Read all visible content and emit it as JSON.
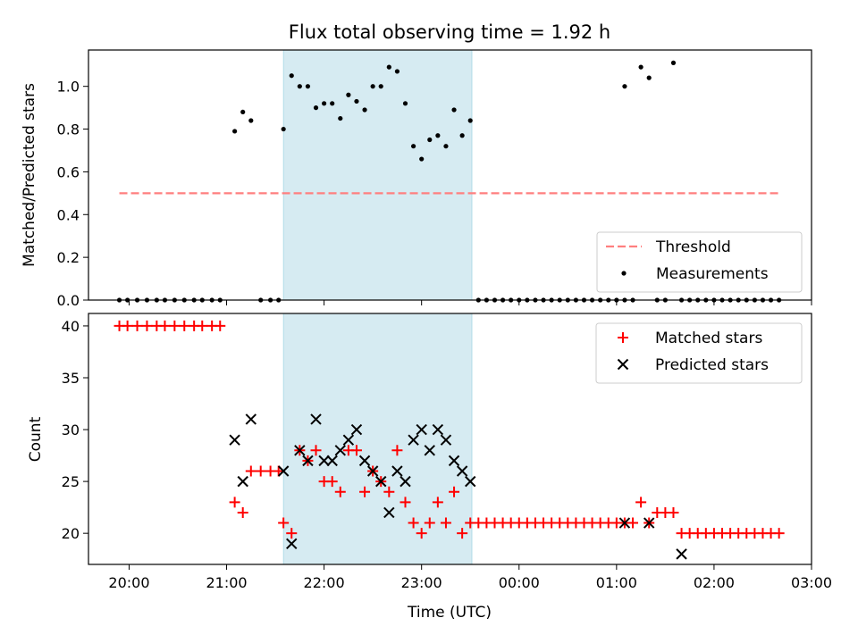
{
  "chart_data": [
    {
      "type": "scatter",
      "title": "Flux total observing time = 1.92 h",
      "xlabel": "",
      "ylabel": "Matched/Predicted stars",
      "xlim": [
        "19:35",
        "03:00"
      ],
      "ylim": [
        0,
        1.17
      ],
      "yticks": [
        "0.0",
        "0.2",
        "0.4",
        "0.6",
        "0.8",
        "1.0"
      ],
      "highlight_span": [
        "21:35",
        "23:31"
      ],
      "legend": {
        "placement": "lower-right"
      },
      "series": [
        {
          "name": "Threshold",
          "kind": "line",
          "style": "dashed",
          "color": "#ff7f7f",
          "x": [
            "19:54",
            "02:40"
          ],
          "y": [
            0.5,
            0.5
          ]
        },
        {
          "name": "Measurements",
          "kind": "points",
          "color": "#000000",
          "points": [
            [
              "19:54",
              0
            ],
            [
              "19:59",
              0
            ],
            [
              "20:05",
              0
            ],
            [
              "20:11",
              0
            ],
            [
              "20:17",
              0
            ],
            [
              "20:22",
              0
            ],
            [
              "20:28",
              0
            ],
            [
              "20:34",
              0
            ],
            [
              "20:40",
              0
            ],
            [
              "20:45",
              0
            ],
            [
              "20:51",
              0
            ],
            [
              "20:56",
              0
            ],
            [
              "21:05",
              0.79
            ],
            [
              "21:10",
              0.88
            ],
            [
              "21:15",
              0.84
            ],
            [
              "21:21",
              0
            ],
            [
              "21:27",
              0
            ],
            [
              "21:32",
              0
            ],
            [
              "21:35",
              0.8
            ],
            [
              "21:40",
              1.05
            ],
            [
              "21:45",
              1.0
            ],
            [
              "21:50",
              1.0
            ],
            [
              "21:55",
              0.9
            ],
            [
              "22:00",
              0.92
            ],
            [
              "22:05",
              0.92
            ],
            [
              "22:10",
              0.85
            ],
            [
              "22:15",
              0.96
            ],
            [
              "22:20",
              0.93
            ],
            [
              "22:25",
              0.89
            ],
            [
              "22:30",
              1.0
            ],
            [
              "22:35",
              1.0
            ],
            [
              "22:40",
              1.09
            ],
            [
              "22:45",
              1.07
            ],
            [
              "22:50",
              0.92
            ],
            [
              "22:55",
              0.72
            ],
            [
              "23:00",
              0.66
            ],
            [
              "23:05",
              0.75
            ],
            [
              "23:10",
              0.77
            ],
            [
              "23:15",
              0.72
            ],
            [
              "23:20",
              0.89
            ],
            [
              "23:25",
              0.77
            ],
            [
              "23:30",
              0.84
            ],
            [
              "23:35",
              0
            ],
            [
              "23:40",
              0
            ],
            [
              "23:45",
              0
            ],
            [
              "23:50",
              0
            ],
            [
              "23:55",
              0
            ],
            [
              "00:00",
              0
            ],
            [
              "00:05",
              0
            ],
            [
              "00:10",
              0
            ],
            [
              "00:15",
              0
            ],
            [
              "00:20",
              0
            ],
            [
              "00:25",
              0
            ],
            [
              "00:30",
              0
            ],
            [
              "00:35",
              0
            ],
            [
              "00:40",
              0
            ],
            [
              "00:45",
              0
            ],
            [
              "00:50",
              0
            ],
            [
              "00:55",
              0
            ],
            [
              "01:00",
              0
            ],
            [
              "01:05",
              0
            ],
            [
              "01:05",
              1.0
            ],
            [
              "01:10",
              0
            ],
            [
              "01:15",
              1.09
            ],
            [
              "01:20",
              1.04
            ],
            [
              "01:25",
              0
            ],
            [
              "01:30",
              0
            ],
            [
              "01:35",
              1.11
            ],
            [
              "01:40",
              0
            ],
            [
              "01:45",
              0
            ],
            [
              "01:50",
              0
            ],
            [
              "01:55",
              0
            ],
            [
              "02:00",
              0
            ],
            [
              "02:05",
              0
            ],
            [
              "02:10",
              0
            ],
            [
              "02:15",
              0
            ],
            [
              "02:20",
              0
            ],
            [
              "02:25",
              0
            ],
            [
              "02:30",
              0
            ],
            [
              "02:35",
              0
            ],
            [
              "02:40",
              0
            ]
          ]
        }
      ]
    },
    {
      "type": "scatter",
      "title": "",
      "xlabel": "Time (UTC)",
      "ylabel": "Count",
      "xlim": [
        "19:35",
        "03:00"
      ],
      "ylim": [
        17,
        41.2
      ],
      "yticks": [
        "20",
        "25",
        "30",
        "35",
        "40"
      ],
      "xticks": [
        "20:00",
        "21:00",
        "22:00",
        "23:00",
        "00:00",
        "01:00",
        "02:00",
        "03:00"
      ],
      "highlight_span": [
        "21:35",
        "23:31"
      ],
      "legend": {
        "placement": "top-right"
      },
      "series": [
        {
          "name": "Matched stars",
          "marker": "plus",
          "color": "#ff0000",
          "points": [
            [
              "19:54",
              40
            ],
            [
              "19:59",
              40
            ],
            [
              "20:05",
              40
            ],
            [
              "20:11",
              40
            ],
            [
              "20:17",
              40
            ],
            [
              "20:22",
              40
            ],
            [
              "20:28",
              40
            ],
            [
              "20:34",
              40
            ],
            [
              "20:40",
              40
            ],
            [
              "20:45",
              40
            ],
            [
              "20:51",
              40
            ],
            [
              "20:56",
              40
            ],
            [
              "21:05",
              23
            ],
            [
              "21:10",
              22
            ],
            [
              "21:15",
              26
            ],
            [
              "21:21",
              26
            ],
            [
              "21:27",
              26
            ],
            [
              "21:32",
              26
            ],
            [
              "21:35",
              21
            ],
            [
              "21:40",
              20
            ],
            [
              "21:45",
              28
            ],
            [
              "21:50",
              27
            ],
            [
              "21:55",
              28
            ],
            [
              "22:00",
              25
            ],
            [
              "22:05",
              25
            ],
            [
              "22:10",
              24
            ],
            [
              "22:15",
              28
            ],
            [
              "22:20",
              28
            ],
            [
              "22:25",
              24
            ],
            [
              "22:30",
              26
            ],
            [
              "22:35",
              25
            ],
            [
              "22:40",
              24
            ],
            [
              "22:45",
              28
            ],
            [
              "22:50",
              23
            ],
            [
              "22:55",
              21
            ],
            [
              "23:00",
              20
            ],
            [
              "23:05",
              21
            ],
            [
              "23:10",
              23
            ],
            [
              "23:15",
              21
            ],
            [
              "23:20",
              24
            ],
            [
              "23:25",
              20
            ],
            [
              "23:30",
              21
            ],
            [
              "23:35",
              21
            ],
            [
              "23:40",
              21
            ],
            [
              "23:45",
              21
            ],
            [
              "23:50",
              21
            ],
            [
              "23:55",
              21
            ],
            [
              "00:00",
              21
            ],
            [
              "00:05",
              21
            ],
            [
              "00:10",
              21
            ],
            [
              "00:15",
              21
            ],
            [
              "00:20",
              21
            ],
            [
              "00:25",
              21
            ],
            [
              "00:30",
              21
            ],
            [
              "00:35",
              21
            ],
            [
              "00:40",
              21
            ],
            [
              "00:45",
              21
            ],
            [
              "00:50",
              21
            ],
            [
              "00:55",
              21
            ],
            [
              "01:00",
              21
            ],
            [
              "01:05",
              21
            ],
            [
              "01:10",
              21
            ],
            [
              "01:15",
              23
            ],
            [
              "01:20",
              21
            ],
            [
              "01:25",
              22
            ],
            [
              "01:30",
              22
            ],
            [
              "01:35",
              22
            ],
            [
              "01:40",
              20
            ],
            [
              "01:45",
              20
            ],
            [
              "01:50",
              20
            ],
            [
              "01:55",
              20
            ],
            [
              "02:00",
              20
            ],
            [
              "02:05",
              20
            ],
            [
              "02:10",
              20
            ],
            [
              "02:15",
              20
            ],
            [
              "02:20",
              20
            ],
            [
              "02:25",
              20
            ],
            [
              "02:30",
              20
            ],
            [
              "02:35",
              20
            ],
            [
              "02:40",
              20
            ]
          ]
        },
        {
          "name": "Predicted stars",
          "marker": "x",
          "color": "#000000",
          "points": [
            [
              "21:05",
              29
            ],
            [
              "21:10",
              25
            ],
            [
              "21:15",
              31
            ],
            [
              "21:35",
              26
            ],
            [
              "21:40",
              19
            ],
            [
              "21:45",
              28
            ],
            [
              "21:50",
              27
            ],
            [
              "21:55",
              31
            ],
            [
              "22:00",
              27
            ],
            [
              "22:05",
              27
            ],
            [
              "22:10",
              28
            ],
            [
              "22:15",
              29
            ],
            [
              "22:20",
              30
            ],
            [
              "22:25",
              27
            ],
            [
              "22:30",
              26
            ],
            [
              "22:35",
              25
            ],
            [
              "22:40",
              22
            ],
            [
              "22:45",
              26
            ],
            [
              "22:50",
              25
            ],
            [
              "22:55",
              29
            ],
            [
              "23:00",
              30
            ],
            [
              "23:05",
              28
            ],
            [
              "23:10",
              30
            ],
            [
              "23:15",
              29
            ],
            [
              "23:20",
              27
            ],
            [
              "23:25",
              26
            ],
            [
              "23:30",
              25
            ],
            [
              "01:05",
              21
            ],
            [
              "01:20",
              21
            ],
            [
              "01:40",
              18
            ]
          ]
        }
      ]
    }
  ]
}
